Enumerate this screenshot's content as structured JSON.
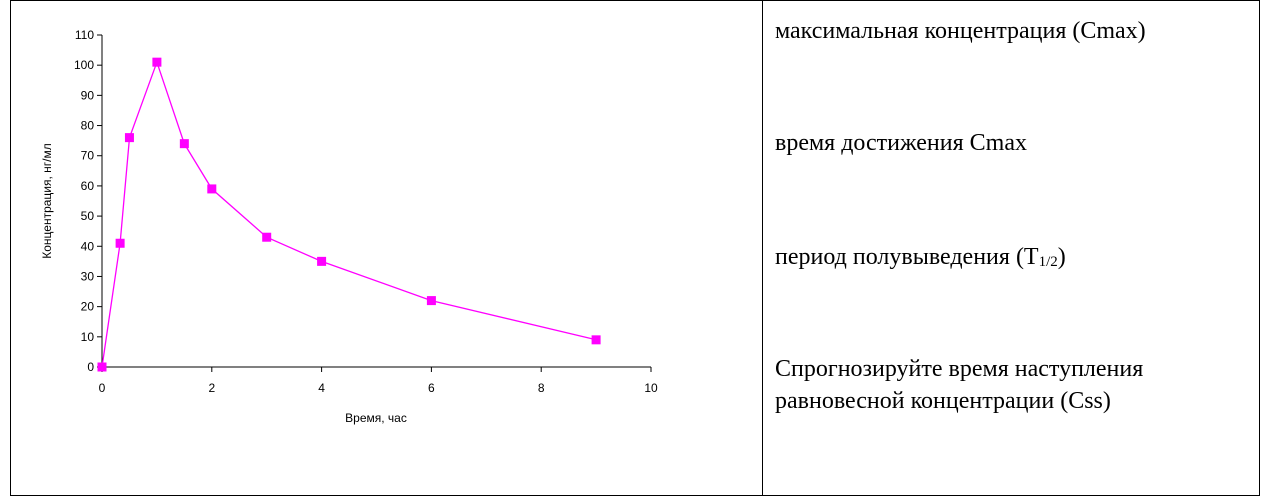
{
  "chart_data": {
    "type": "line",
    "title": "",
    "xlabel": "Время, час",
    "ylabel": "Концентрация, нг/мл",
    "xlim": [
      0,
      10
    ],
    "ylim": [
      0,
      110
    ],
    "x_ticks": [
      0,
      2,
      4,
      6,
      8,
      10
    ],
    "y_ticks": [
      0,
      10,
      20,
      30,
      40,
      50,
      60,
      70,
      80,
      90,
      100,
      110
    ],
    "grid": false,
    "legend": "none",
    "series": [
      {
        "color": "#ff00ff",
        "marker": "square",
        "x": [
          0,
          0.33,
          0.5,
          1,
          1.5,
          2,
          3,
          4,
          6,
          9
        ],
        "y": [
          0,
          41,
          76,
          101,
          74,
          59,
          43,
          35,
          22,
          9
        ]
      }
    ]
  },
  "questions": {
    "q1": "максимальная концентрация (Cmax)",
    "q2": "время достижения Cmax",
    "q3_prefix": "период полувыведения (T",
    "q3_sub": "1/2",
    "q3_suffix": ")",
    "q4": "Спрогнозируйте время наступления равновесной концентрации (Css)"
  }
}
